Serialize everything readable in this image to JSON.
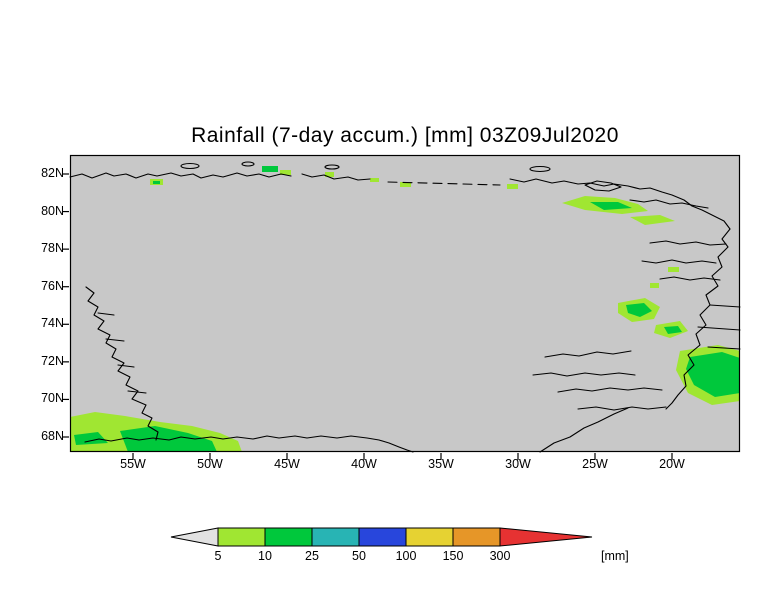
{
  "title": "Rainfall (7-day accum.) [mm] 03Z09Jul2020",
  "map": {
    "lat_ticks": [
      "82N",
      "80N",
      "78N",
      "76N",
      "74N",
      "72N",
      "70N",
      "68N"
    ],
    "lon_ticks": [
      "55W",
      "50W",
      "45W",
      "40W",
      "35W",
      "30W",
      "25W",
      "20W"
    ],
    "land_color": "#c8c8c8",
    "rain_light_color": "#a0e632",
    "rain_green_color": "#00c83c"
  },
  "colorbar": {
    "tick_values": [
      "5",
      "10",
      "25",
      "50",
      "100",
      "150",
      "300"
    ],
    "unit_label": "[mm]",
    "colors": [
      "#e2e2e2",
      "#a0e632",
      "#00c83c",
      "#28b4b4",
      "#2846dc",
      "#e6d232",
      "#e69628",
      "#e63232"
    ]
  }
}
